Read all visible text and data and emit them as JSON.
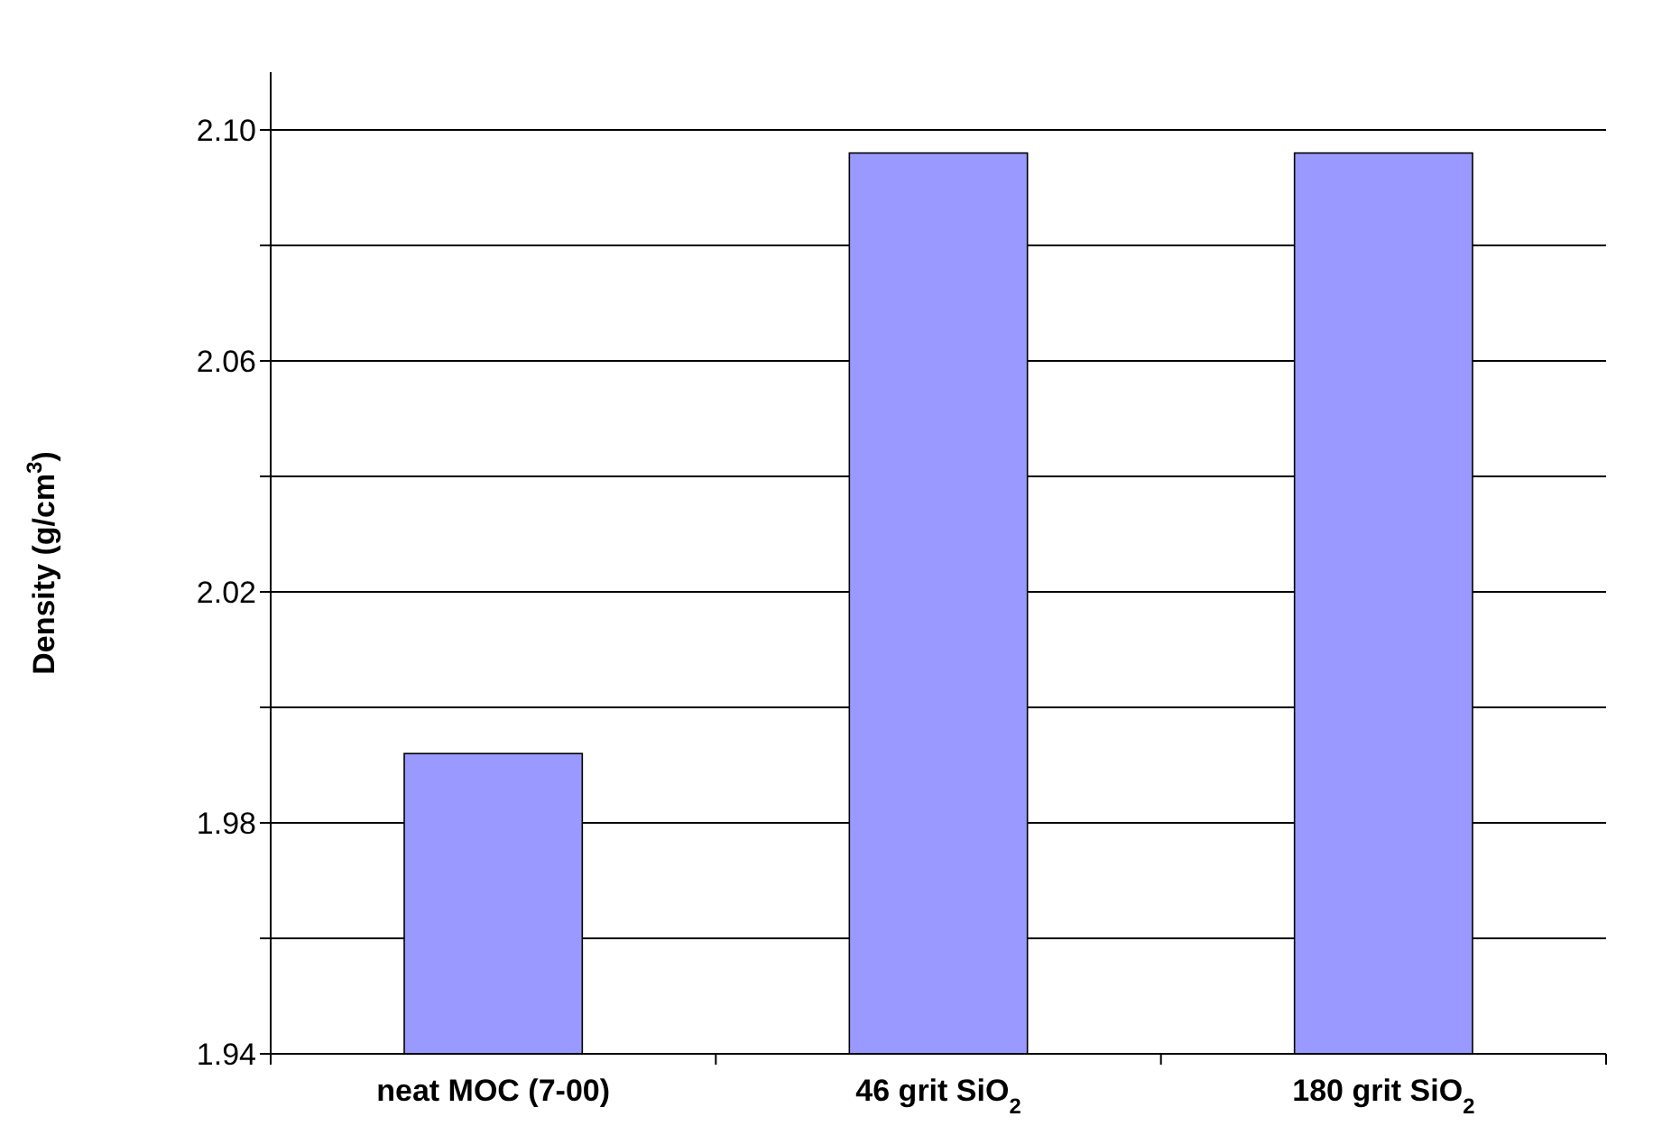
{
  "chart_data": {
    "type": "bar",
    "ylabel": "Density  (g/cm$^{3}$)",
    "categories": [
      "neat MOC (7-00)",
      "46 grit SiO$_{2}$",
      "180 grit SiO$_{2}$"
    ],
    "values": [
      1.992,
      2.096,
      2.096
    ],
    "color": "#9999ff",
    "ylim": [
      1.94,
      2.11
    ],
    "yticks": [
      1.94,
      {
        "value": 1.96,
        "label": null
      },
      1.98,
      {
        "value": 2.0,
        "label": null
      },
      2.02,
      {
        "value": 2.04,
        "label": null
      },
      2.06,
      {
        "value": 2.08,
        "label": null
      },
      {
        "value": 2.1,
        "label": "2.10"
      }
    ],
    "grid": "y"
  }
}
